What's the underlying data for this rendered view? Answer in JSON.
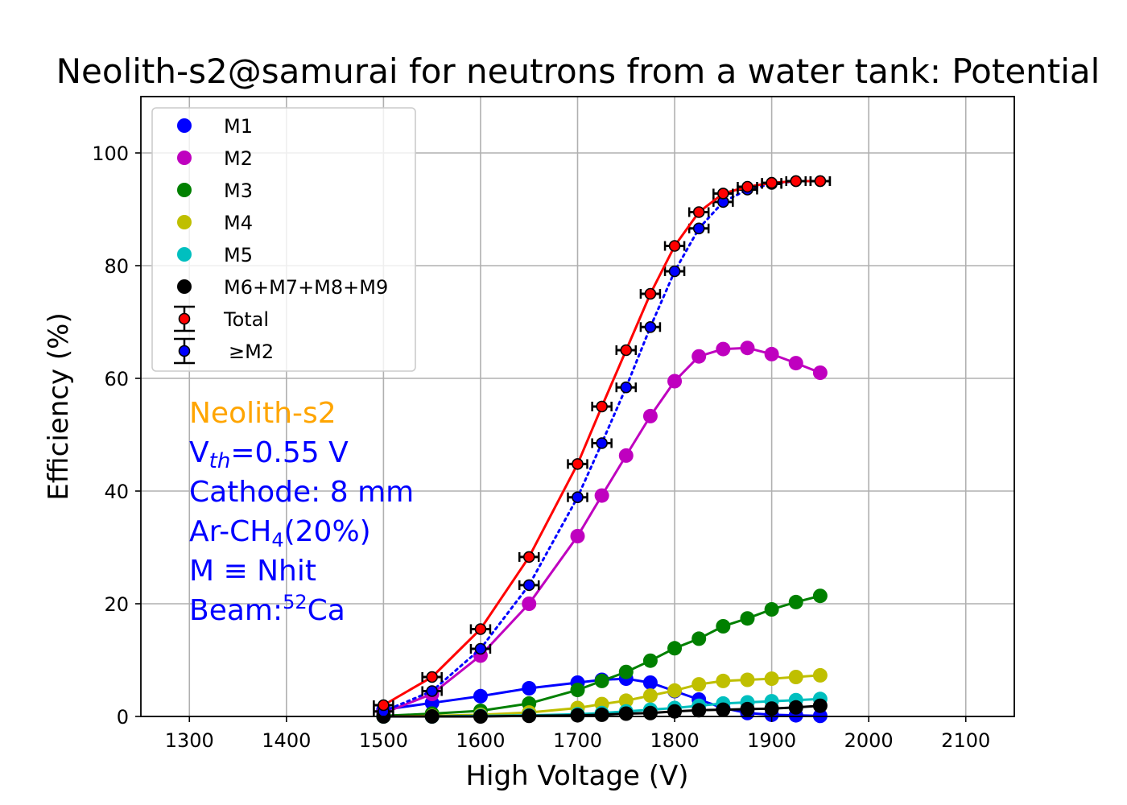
{
  "chart_data": {
    "type": "line",
    "title": "Neolith-s2@samurai for neutrons from a water tank: Potential",
    "xlabel": "High Voltage (V)",
    "ylabel": "Efficiency (%)",
    "xlim": [
      1250,
      2150
    ],
    "ylim": [
      0,
      110
    ],
    "xticks": [
      1300,
      1400,
      1500,
      1600,
      1700,
      1800,
      1900,
      2000,
      2100
    ],
    "yticks": [
      0,
      20,
      40,
      60,
      80,
      100
    ],
    "grid": true,
    "legend_position": "top-left",
    "x": [
      1500,
      1550,
      1600,
      1650,
      1700,
      1725,
      1750,
      1775,
      1800,
      1825,
      1850,
      1875,
      1900,
      1925,
      1950
    ],
    "series": [
      {
        "name": "M1",
        "color": "#0000ff",
        "marker": "circle",
        "line": "solid",
        "values": [
          1.2,
          2.4,
          3.6,
          5.0,
          6.0,
          6.5,
          6.7,
          6.0,
          4.5,
          3.0,
          1.5,
          0.6,
          0.3,
          0.2,
          0.1
        ]
      },
      {
        "name": "M2",
        "color": "#bf00bf",
        "marker": "circle",
        "line": "solid",
        "values": [
          0.6,
          4.0,
          10.8,
          20.0,
          32.0,
          39.2,
          46.3,
          53.3,
          59.5,
          63.9,
          65.2,
          65.4,
          64.3,
          62.7,
          61.0
        ]
      },
      {
        "name": "M3",
        "color": "#008000",
        "marker": "circle",
        "line": "solid",
        "values": [
          0.1,
          0.5,
          1.0,
          2.3,
          4.7,
          6.3,
          7.9,
          9.9,
          12.1,
          13.8,
          16.0,
          17.4,
          19.0,
          20.3,
          21.4
        ]
      },
      {
        "name": "M4",
        "color": "#bfbf00",
        "marker": "circle",
        "line": "solid",
        "values": [
          0.0,
          0.1,
          0.3,
          0.7,
          1.5,
          2.2,
          2.8,
          3.7,
          4.6,
          5.7,
          6.3,
          6.5,
          6.7,
          7.0,
          7.3
        ]
      },
      {
        "name": "M5",
        "color": "#00bfbf",
        "marker": "circle",
        "line": "solid",
        "values": [
          0.0,
          0.0,
          0.1,
          0.2,
          0.4,
          0.6,
          0.9,
          1.2,
          1.5,
          1.9,
          2.3,
          2.5,
          2.7,
          2.9,
          3.1
        ]
      },
      {
        "name": "M6+M7+M8+M9",
        "color": "#000000",
        "marker": "circle",
        "line": "solid",
        "values": [
          0.0,
          0.0,
          0.0,
          0.1,
          0.2,
          0.3,
          0.5,
          0.6,
          0.9,
          1.1,
          1.2,
          1.3,
          1.4,
          1.6,
          1.9
        ]
      },
      {
        "name": "Total",
        "color": "#ff0000",
        "marker_face": "#ff0000",
        "marker_edge": "#000000",
        "line": "solid",
        "errorbar": true,
        "values": [
          2.0,
          7.0,
          15.5,
          28.3,
          44.8,
          55.0,
          65.0,
          75.0,
          83.5,
          89.5,
          92.8,
          94.0,
          94.7,
          95.0,
          95.0
        ]
      },
      {
        "name": "≥M2",
        "color": "#0000ff",
        "marker_face": "#0000ff",
        "marker_edge": "#000000",
        "line": "dotted",
        "errorbar": true,
        "values": [
          0.9,
          4.5,
          12.0,
          23.3,
          38.9,
          48.5,
          58.4,
          69.1,
          79.0,
          86.6,
          91.3,
          93.5,
          94.5,
          95.0,
          95.0
        ]
      }
    ],
    "annotations": [
      {
        "text": "Neolith-s2",
        "color": "#ffa500"
      },
      {
        "text": "Vth=0.55 V",
        "color": "#0000ff"
      },
      {
        "text": "Cathode: 8 mm",
        "color": "#0000ff"
      },
      {
        "text": "Ar-CH4(20%)",
        "color": "#0000ff"
      },
      {
        "text": "M ≡ Nhit",
        "color": "#0000ff"
      },
      {
        "text": "Beam:52Ca",
        "color": "#0000ff"
      }
    ]
  }
}
